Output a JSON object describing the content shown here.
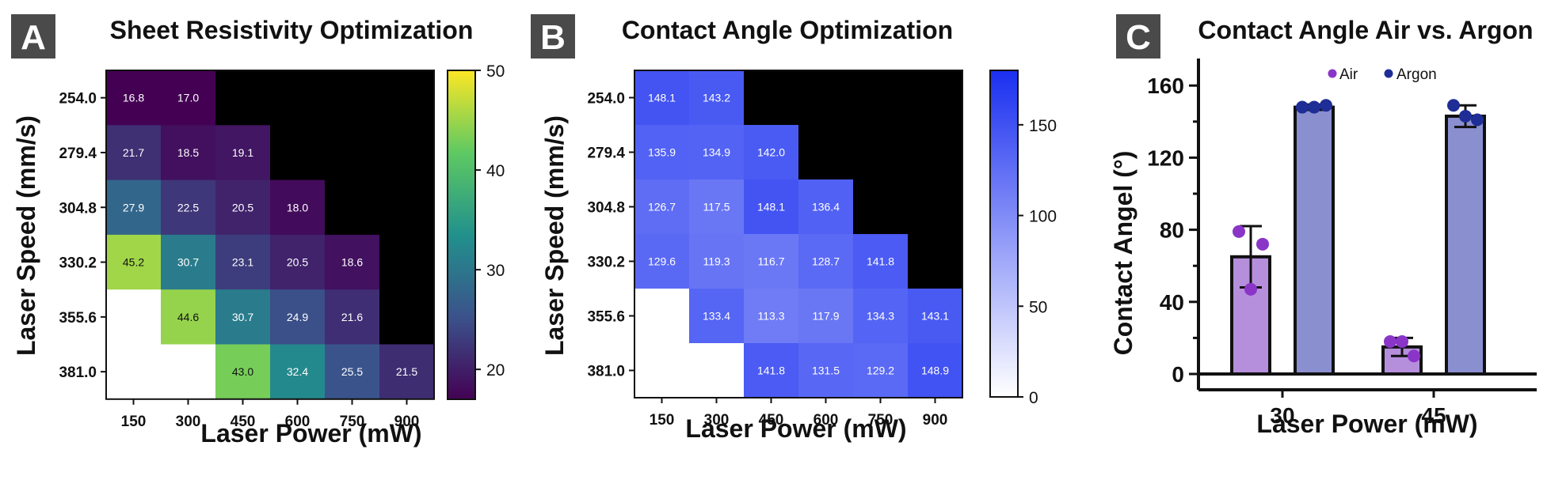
{
  "panels": {
    "a_letter": "A",
    "b_letter": "B",
    "c_letter": "C"
  },
  "chart_data": [
    {
      "type": "heatmap",
      "title": "Sheet Resistivity Optimization",
      "xlabel": "Laser Power (mW)",
      "ylabel": "Laser Speed (mm/s)",
      "x_labels": [
        "150",
        "300",
        "450",
        "600",
        "750",
        "900"
      ],
      "y_labels": [
        "254.0",
        "279.4",
        "304.8",
        "330.2",
        "355.6",
        "381.0"
      ],
      "values": [
        [
          16.8,
          17.0,
          null,
          null,
          null,
          null
        ],
        [
          21.7,
          18.5,
          19.1,
          null,
          null,
          null
        ],
        [
          27.9,
          22.5,
          20.5,
          18.0,
          null,
          null
        ],
        [
          45.2,
          30.7,
          23.1,
          20.5,
          18.6,
          null
        ],
        [
          null,
          44.6,
          30.7,
          24.9,
          21.6,
          null
        ],
        [
          null,
          null,
          43.0,
          32.4,
          25.5,
          21.5
        ]
      ],
      "value_labels": [
        [
          "16.8",
          "17.0",
          "",
          "",
          "",
          ""
        ],
        [
          "21.7",
          "18.5",
          "19.1",
          "",
          "",
          ""
        ],
        [
          "27.9",
          "22.5",
          "20.5",
          "18.0",
          "",
          ""
        ],
        [
          "45.2",
          "30.7",
          "23.1",
          "20.5",
          "18.6",
          ""
        ],
        [
          "",
          "44.6",
          "30.7",
          "24.9",
          "21.6",
          ""
        ],
        [
          "",
          "",
          "43.0",
          "32.4",
          "25.5",
          "21.5"
        ]
      ],
      "cell_state": [
        [
          "v",
          "v",
          "k",
          "k",
          "k",
          "k"
        ],
        [
          "v",
          "v",
          "v",
          "k",
          "k",
          "k"
        ],
        [
          "v",
          "v",
          "v",
          "v",
          "k",
          "k"
        ],
        [
          "v",
          "v",
          "v",
          "v",
          "v",
          "k"
        ],
        [
          "w",
          "v",
          "v",
          "v",
          "v",
          "k"
        ],
        [
          "w",
          "w",
          "v",
          "v",
          "v",
          "v"
        ]
      ],
      "colormap": "viridis",
      "colors": {
        "missing_dark": "#000000",
        "missing_light": "#ffffff"
      },
      "colorbar": {
        "range": [
          17,
          50
        ],
        "ticks": [
          "20",
          "30",
          "40",
          "50"
        ],
        "tick_values": [
          20,
          30,
          40,
          50
        ]
      }
    },
    {
      "type": "heatmap",
      "title": "Contact Angle Optimization",
      "xlabel": "Laser Power (mW)",
      "ylabel": "Laser Speed (mm/s)",
      "x_labels": [
        "150",
        "300",
        "450",
        "600",
        "750",
        "900"
      ],
      "y_labels": [
        "254.0",
        "279.4",
        "304.8",
        "330.2",
        "355.6",
        "381.0"
      ],
      "values": [
        [
          148.1,
          143.2,
          null,
          null,
          null,
          null
        ],
        [
          135.9,
          134.9,
          142.0,
          null,
          null,
          null
        ],
        [
          126.7,
          117.5,
          148.1,
          136.4,
          null,
          null
        ],
        [
          129.6,
          119.3,
          116.7,
          128.7,
          141.8,
          null
        ],
        [
          null,
          133.4,
          113.3,
          117.9,
          134.3,
          143.1
        ],
        [
          null,
          null,
          141.8,
          131.5,
          129.2,
          148.9
        ]
      ],
      "value_labels": [
        [
          "148.1",
          "143.2",
          "",
          "",
          "",
          ""
        ],
        [
          "135.9",
          "134.9",
          "142.0",
          "",
          "",
          ""
        ],
        [
          "126.7",
          "117.5",
          "148.1",
          "136.4",
          "",
          ""
        ],
        [
          "129.6",
          "119.3",
          "116.7",
          "128.7",
          "141.8",
          ""
        ],
        [
          "",
          "133.4",
          "113.3",
          "117.9",
          "134.3",
          "143.1"
        ],
        [
          "",
          "",
          "141.8",
          "131.5",
          "129.2",
          "148.9"
        ]
      ],
      "cell_state": [
        [
          "v",
          "v",
          "k",
          "k",
          "k",
          "k"
        ],
        [
          "v",
          "v",
          "v",
          "k",
          "k",
          "k"
        ],
        [
          "v",
          "v",
          "v",
          "v",
          "k",
          "k"
        ],
        [
          "v",
          "v",
          "v",
          "v",
          "v",
          "k"
        ],
        [
          "w",
          "v",
          "v",
          "v",
          "v",
          "v"
        ],
        [
          "w",
          "w",
          "v",
          "v",
          "v",
          "v"
        ]
      ],
      "colormap": "white-to-blue",
      "colors": {
        "low": "#ffffff",
        "high": "#1a2ff0",
        "missing_dark": "#000000",
        "missing_light": "#ffffff"
      },
      "colorbar": {
        "range": [
          0,
          180
        ],
        "ticks": [
          "0",
          "50",
          "100",
          "150"
        ],
        "tick_values": [
          0,
          50,
          100,
          150
        ]
      }
    },
    {
      "type": "bar",
      "title": "Contact Angle Air vs. Argon",
      "xlabel": "Laser Power (mW)",
      "ylabel": "Contact Angel  (°)",
      "categories": [
        "30",
        "45"
      ],
      "ylim": [
        0,
        175
      ],
      "y_ticks": [
        "0",
        "40",
        "80",
        "120",
        "160"
      ],
      "y_tick_values": [
        0,
        40,
        80,
        120,
        160
      ],
      "legend": {
        "position": "top"
      },
      "series": [
        {
          "name": "Air",
          "color": "#b68fdc",
          "point_color": "#8a35c8",
          "values": [
            65,
            15
          ],
          "errors": [
            17,
            5
          ],
          "points": [
            [
              79,
              72,
              47
            ],
            [
              18,
              10,
              18
            ]
          ]
        },
        {
          "name": "Argon",
          "color": "#8a8fd0",
          "point_color": "#1f2d96",
          "values": [
            148,
            143
          ],
          "errors": [
            1.5,
            6
          ],
          "points": [
            [
              148,
              149,
              148
            ],
            [
              149,
              141,
              143
            ]
          ]
        }
      ]
    }
  ]
}
